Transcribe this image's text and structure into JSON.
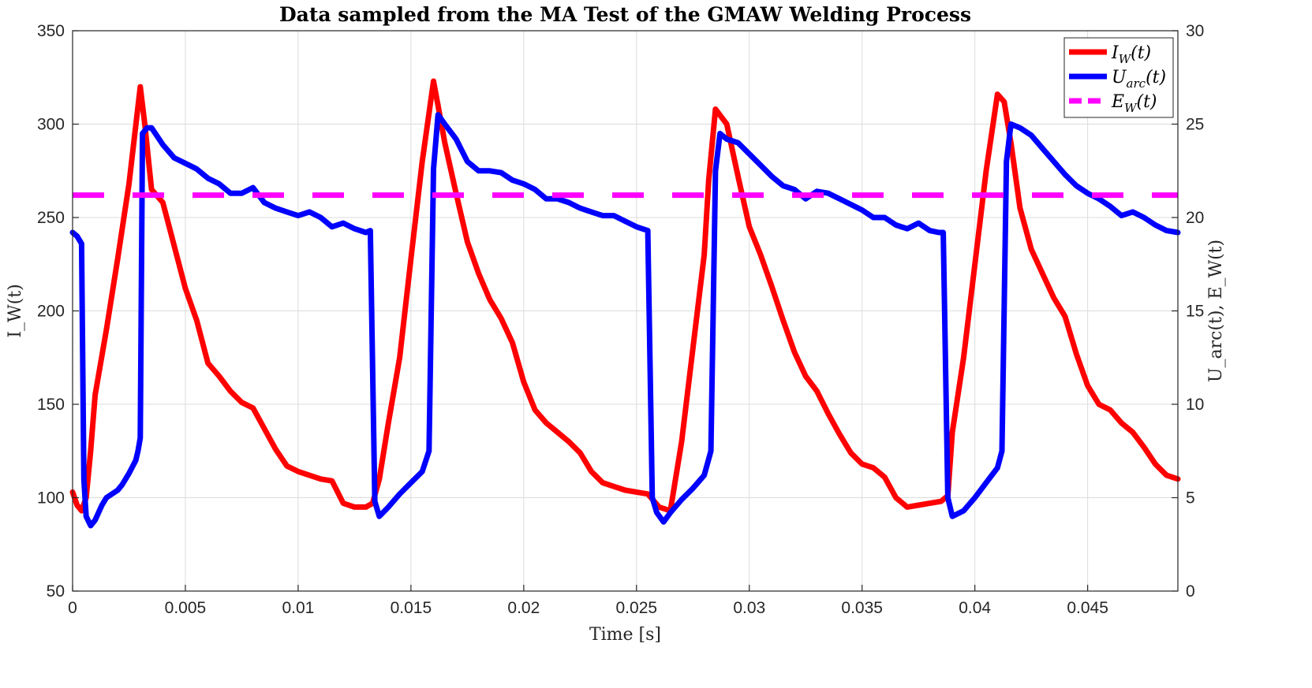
{
  "chart_data": {
    "type": "line",
    "title": "Data sampled from the MA Test of the GMAW Welding Process",
    "xlabel": "Time [s]",
    "ylabel_left": "I_W(t)",
    "ylabel_right": "U_arc(t), E_W(t)",
    "xlim": [
      0,
      0.049
    ],
    "ylim_left": [
      50,
      350
    ],
    "ylim_right": [
      0,
      30
    ],
    "x_ticks": [
      0,
      0.005,
      0.01,
      0.015,
      0.02,
      0.025,
      0.03,
      0.035,
      0.04,
      0.045
    ],
    "x_tick_labels": [
      "0",
      "0.005",
      "0.01",
      "0.015",
      "0.02",
      "0.025",
      "0.03",
      "0.035",
      "0.04",
      "0.045"
    ],
    "y_left_ticks": [
      50,
      100,
      150,
      200,
      250,
      300,
      350
    ],
    "y_left_tick_labels": [
      "50",
      "100",
      "150",
      "200",
      "250",
      "300",
      "350"
    ],
    "y_right_ticks": [
      0,
      5,
      10,
      15,
      20,
      25,
      30
    ],
    "y_right_tick_labels": [
      "0",
      "5",
      "10",
      "15",
      "20",
      "25",
      "30"
    ],
    "grid": true,
    "legend_position": "top-right",
    "series": [
      {
        "name": "I_W(t)",
        "axis": "left",
        "color": "#ff0000",
        "style": "solid",
        "legend_base": "I",
        "legend_sub": "W",
        "legend_tail": "(t)",
        "x": [
          0,
          0.0002,
          0.0004,
          0.0006,
          0.0008,
          0.001,
          0.0015,
          0.002,
          0.0025,
          0.003,
          0.0032,
          0.0035,
          0.004,
          0.0045,
          0.005,
          0.0055,
          0.006,
          0.0065,
          0.007,
          0.0075,
          0.008,
          0.0085,
          0.009,
          0.0095,
          0.01,
          0.0105,
          0.011,
          0.0115,
          0.012,
          0.0125,
          0.013,
          0.0133,
          0.0136,
          0.014,
          0.0145,
          0.015,
          0.0155,
          0.016,
          0.0162,
          0.0165,
          0.017,
          0.0175,
          0.018,
          0.0185,
          0.019,
          0.0195,
          0.02,
          0.0205,
          0.021,
          0.0215,
          0.022,
          0.0225,
          0.023,
          0.0235,
          0.024,
          0.0245,
          0.025,
          0.0255,
          0.026,
          0.0265,
          0.027,
          0.0275,
          0.028,
          0.0282,
          0.0285,
          0.029,
          0.0295,
          0.03,
          0.0305,
          0.031,
          0.0315,
          0.032,
          0.0325,
          0.033,
          0.0335,
          0.034,
          0.0345,
          0.035,
          0.0355,
          0.036,
          0.0365,
          0.037,
          0.0375,
          0.038,
          0.0385,
          0.0388,
          0.039,
          0.0395,
          0.04,
          0.0405,
          0.041,
          0.0413,
          0.0416,
          0.042,
          0.0425,
          0.043,
          0.0435,
          0.044,
          0.0445,
          0.045,
          0.0455,
          0.046,
          0.0465,
          0.047,
          0.0475,
          0.048,
          0.0485,
          0.049
        ],
        "values": [
          103,
          96,
          93,
          100,
          125,
          155,
          190,
          228,
          268,
          320,
          300,
          265,
          258,
          235,
          212,
          195,
          172,
          165,
          157,
          151,
          148,
          137,
          126,
          117,
          114,
          112,
          110,
          109,
          97,
          95,
          95,
          97,
          110,
          140,
          175,
          228,
          280,
          323,
          310,
          290,
          263,
          237,
          220,
          206,
          196,
          183,
          162,
          147,
          140,
          135,
          130,
          124,
          114,
          108,
          106,
          104,
          103,
          102,
          95,
          93,
          130,
          180,
          230,
          270,
          308,
          300,
          272,
          245,
          230,
          213,
          195,
          178,
          165,
          157,
          145,
          134,
          124,
          118,
          116,
          111,
          100,
          95,
          96,
          97,
          98,
          101,
          135,
          175,
          225,
          275,
          316,
          312,
          290,
          255,
          233,
          220,
          207,
          197,
          177,
          160,
          150,
          147,
          140,
          135,
          127,
          118,
          112,
          110
        ]
      },
      {
        "name": "U_arc(t)",
        "axis": "right",
        "color": "#0000ff",
        "style": "solid",
        "legend_base": "U",
        "legend_sub": "arc",
        "legend_tail": "(t)",
        "x": [
          0,
          0.0002,
          0.0004,
          0.0005,
          0.0006,
          0.0008,
          0.001,
          0.0013,
          0.0015,
          0.002,
          0.0022,
          0.0025,
          0.0028,
          0.0029,
          0.003,
          0.0031,
          0.0033,
          0.0035,
          0.004,
          0.0045,
          0.005,
          0.0055,
          0.006,
          0.0065,
          0.007,
          0.0075,
          0.008,
          0.0085,
          0.009,
          0.0095,
          0.01,
          0.0105,
          0.011,
          0.0115,
          0.012,
          0.0125,
          0.013,
          0.0132,
          0.0134,
          0.0136,
          0.014,
          0.0145,
          0.015,
          0.0155,
          0.0158,
          0.016,
          0.0162,
          0.0165,
          0.017,
          0.0175,
          0.018,
          0.0185,
          0.019,
          0.0195,
          0.02,
          0.0205,
          0.021,
          0.0215,
          0.022,
          0.0225,
          0.023,
          0.0235,
          0.024,
          0.0245,
          0.025,
          0.0255,
          0.0257,
          0.0259,
          0.0262,
          0.0265,
          0.027,
          0.0275,
          0.028,
          0.0283,
          0.0285,
          0.0287,
          0.029,
          0.0295,
          0.03,
          0.0305,
          0.031,
          0.0315,
          0.032,
          0.0325,
          0.033,
          0.0335,
          0.034,
          0.0345,
          0.035,
          0.0355,
          0.036,
          0.0365,
          0.037,
          0.0375,
          0.038,
          0.0384,
          0.0386,
          0.0388,
          0.039,
          0.0395,
          0.04,
          0.0405,
          0.041,
          0.0412,
          0.0414,
          0.0416,
          0.042,
          0.0425,
          0.043,
          0.0435,
          0.044,
          0.0445,
          0.045,
          0.0455,
          0.046,
          0.0465,
          0.047,
          0.0475,
          0.048,
          0.0485,
          0.049
        ],
        "values": [
          19.2,
          19.0,
          18.6,
          6.0,
          4.0,
          3.5,
          3.8,
          4.6,
          5.0,
          5.4,
          5.7,
          6.3,
          7.0,
          7.5,
          8.2,
          24.5,
          24.8,
          24.8,
          23.9,
          23.2,
          22.9,
          22.6,
          22.1,
          21.8,
          21.3,
          21.3,
          21.6,
          20.8,
          20.5,
          20.3,
          20.1,
          20.3,
          20.0,
          19.5,
          19.7,
          19.4,
          19.2,
          19.3,
          4.8,
          4.0,
          4.5,
          5.2,
          5.8,
          6.4,
          7.5,
          22.6,
          25.5,
          25.0,
          24.2,
          23.0,
          22.5,
          22.5,
          22.4,
          22.0,
          21.8,
          21.5,
          21.0,
          21.0,
          20.8,
          20.5,
          20.3,
          20.1,
          20.1,
          19.8,
          19.5,
          19.3,
          5.0,
          4.2,
          3.7,
          4.2,
          4.9,
          5.5,
          6.2,
          7.5,
          22.5,
          24.5,
          24.2,
          24.0,
          23.4,
          22.8,
          22.2,
          21.7,
          21.5,
          21.0,
          21.4,
          21.3,
          21.0,
          20.7,
          20.4,
          20.0,
          20.0,
          19.6,
          19.4,
          19.7,
          19.3,
          19.2,
          19.2,
          5.0,
          4.0,
          4.3,
          5.0,
          5.8,
          6.6,
          7.5,
          23.0,
          25.0,
          24.8,
          24.4,
          23.7,
          23.0,
          22.3,
          21.7,
          21.3,
          21.0,
          20.6,
          20.1,
          20.3,
          20.0,
          19.6,
          19.3,
          19.2
        ]
      },
      {
        "name": "E_W(t)",
        "axis": "right",
        "color": "#ff00ff",
        "style": "dashed",
        "legend_base": "E",
        "legend_sub": "W",
        "legend_tail": "(t)",
        "x": [
          0,
          0.049
        ],
        "values": [
          21.2,
          21.2
        ]
      }
    ]
  }
}
